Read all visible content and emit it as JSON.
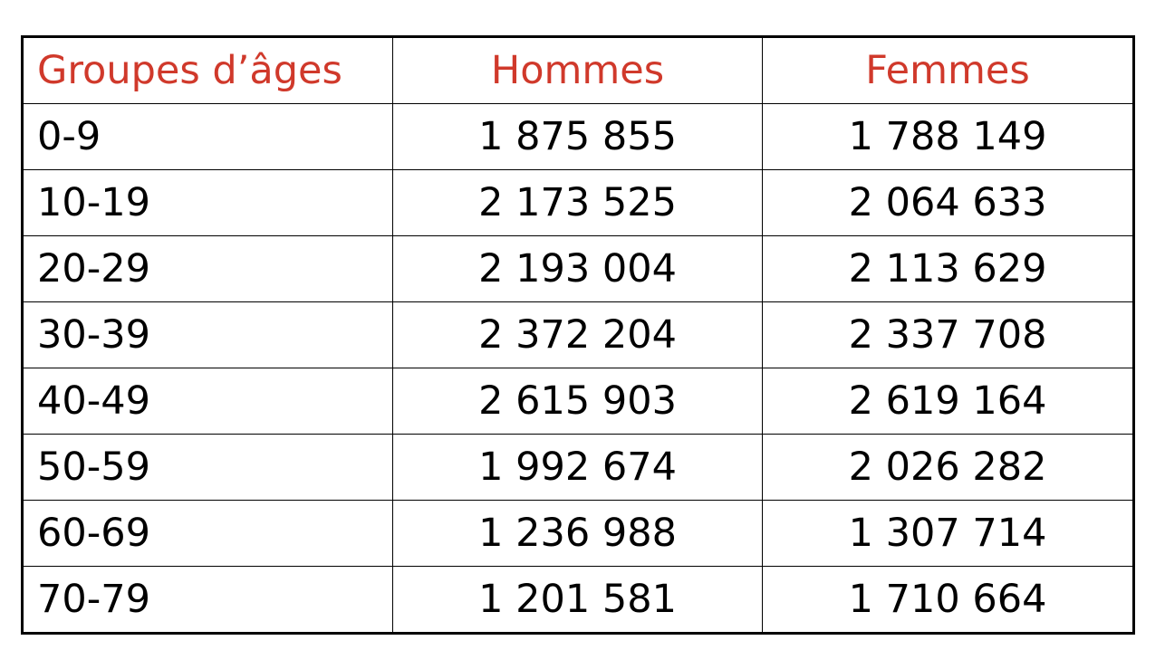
{
  "table": {
    "headers": [
      "Groupes d’âges",
      "Hommes",
      "Femmes"
    ],
    "rows": [
      [
        "0-9",
        "1 875 855",
        "1 788 149"
      ],
      [
        "10-19",
        "2 173 525",
        "2 064 633"
      ],
      [
        "20-29",
        "2 193 004",
        "2 113 629"
      ],
      [
        "30-39",
        "2 372 204",
        "2 337 708"
      ],
      [
        "40-49",
        "2 615 903",
        "2 619 164"
      ],
      [
        "50-59",
        "1 992 674",
        "2 026 282"
      ],
      [
        "60-69",
        "1 236 988",
        "1 307 714"
      ],
      [
        "70-79",
        "1 201 581",
        "1 710 664"
      ]
    ],
    "colors": {
      "header_text": "#d0392b",
      "body_text": "#000000",
      "border": "#000000"
    }
  }
}
